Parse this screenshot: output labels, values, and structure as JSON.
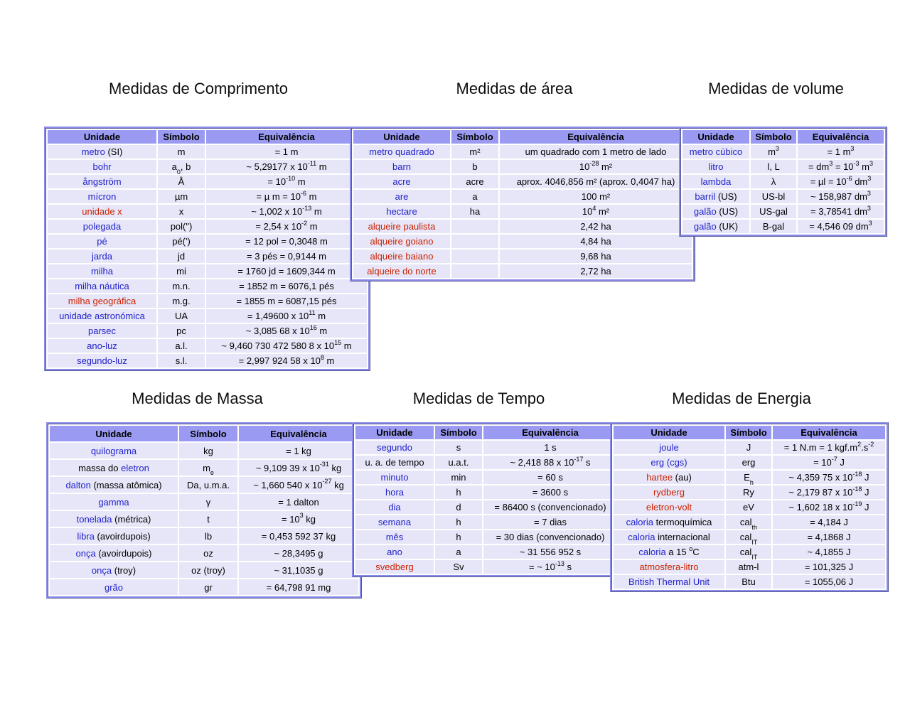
{
  "page": {
    "background": "#ffffff"
  },
  "colors": {
    "blue": "#2222cc",
    "red": "#cc2200",
    "black": "#000000",
    "header_bg": "#9a9af2",
    "row_bg": "#e6e6f8",
    "border": "#8a8ae8"
  },
  "tables": [
    {
      "id": "comprimento",
      "title": "Medidas de Comprimento",
      "headers": [
        "Unidade",
        "Símbolo",
        "Equivalência"
      ],
      "rows": [
        {
          "unit": [
            [
              "metro",
              "blue"
            ],
            [
              " (SI)",
              "black"
            ]
          ],
          "symbol": "m",
          "equiv": "= 1 m"
        },
        {
          "unit": [
            [
              "bohr",
              "blue"
            ]
          ],
          "symbol": "a_{0}, b",
          "equiv": "~ 5,29177 x 10^{-11} m"
        },
        {
          "unit": [
            [
              "ångström",
              "blue"
            ]
          ],
          "symbol": "Å",
          "equiv": "= 10^{-10} m"
        },
        {
          "unit": [
            [
              "mícron",
              "blue"
            ]
          ],
          "symbol": "µm",
          "equiv": "= µ m = 10^{-6} m"
        },
        {
          "unit": [
            [
              "unidade x",
              "red"
            ]
          ],
          "symbol": "x",
          "equiv": "~ 1,002 x 10^{-13} m"
        },
        {
          "unit": [
            [
              "polegada",
              "blue"
            ]
          ],
          "symbol": "pol(\")",
          "equiv": "= 2,54 x 10^{-2} m"
        },
        {
          "unit": [
            [
              "pé",
              "blue"
            ]
          ],
          "symbol": "pé(')",
          "equiv": "= 12 pol = 0,3048 m"
        },
        {
          "unit": [
            [
              "jarda",
              "blue"
            ]
          ],
          "symbol": "jd",
          "equiv": "= 3 pés = 0,9144 m"
        },
        {
          "unit": [
            [
              "milha",
              "blue"
            ]
          ],
          "symbol": "mi",
          "equiv": "= 1760 jd = 1609,344 m"
        },
        {
          "unit": [
            [
              "milha náutica",
              "blue"
            ]
          ],
          "symbol": "m.n.",
          "equiv": "= 1852 m = 6076,1 pés"
        },
        {
          "unit": [
            [
              "milha geográfica",
              "red"
            ]
          ],
          "symbol": "m.g.",
          "equiv": "= 1855 m = 6087,15 pés"
        },
        {
          "unit": [
            [
              "unidade astronómica",
              "blue"
            ]
          ],
          "symbol": "UA",
          "equiv": "= 1,49600 x 10^{11} m"
        },
        {
          "unit": [
            [
              "parsec",
              "blue"
            ]
          ],
          "symbol": "pc",
          "equiv": "~ 3,085 68 x 10^{16} m"
        },
        {
          "unit": [
            [
              "ano-luz",
              "blue"
            ]
          ],
          "symbol": "a.l.",
          "equiv": "~ 9,460 730 472 580 8 x 10^{15} m"
        },
        {
          "unit": [
            [
              "segundo-luz",
              "blue"
            ]
          ],
          "symbol": "s.l.",
          "equiv": "= 2,997 924 58 x 10^{8} m"
        }
      ]
    },
    {
      "id": "area",
      "title": "Medidas de área",
      "headers": [
        "Unidade",
        "Símbolo",
        "Equivalência"
      ],
      "rows": [
        {
          "unit": [
            [
              "metro quadrado",
              "blue"
            ]
          ],
          "symbol": "m²",
          "equiv": "um quadrado com 1 metro de lado"
        },
        {
          "unit": [
            [
              "barn",
              "blue"
            ]
          ],
          "symbol": "b",
          "equiv": "10^{-28} m²"
        },
        {
          "unit": [
            [
              "acre",
              "blue"
            ]
          ],
          "symbol": "acre",
          "equiv": "aprox. 4046,856 m² (aprox. 0,4047 ha)"
        },
        {
          "unit": [
            [
              "are",
              "blue"
            ]
          ],
          "symbol": "a",
          "equiv": "100 m²"
        },
        {
          "unit": [
            [
              "hectare",
              "blue"
            ]
          ],
          "symbol": "ha",
          "equiv": "10^{4} m²"
        },
        {
          "unit": [
            [
              "alqueire paulista",
              "red"
            ]
          ],
          "symbol": "",
          "equiv": "2,42 ha"
        },
        {
          "unit": [
            [
              "alqueire goiano",
              "red"
            ]
          ],
          "symbol": "",
          "equiv": "4,84 ha"
        },
        {
          "unit": [
            [
              "alqueire baiano",
              "red"
            ]
          ],
          "symbol": "",
          "equiv": "9,68 ha"
        },
        {
          "unit": [
            [
              "alqueire do norte",
              "red"
            ]
          ],
          "symbol": "",
          "equiv": "2,72 ha"
        }
      ]
    },
    {
      "id": "volume",
      "title": "Medidas de volume",
      "headers": [
        "Unidade",
        "Símbolo",
        "Equivalência"
      ],
      "rows": [
        {
          "unit": [
            [
              "metro cúbico",
              "blue"
            ]
          ],
          "symbol": "m^{3}",
          "equiv": "= 1 m^{3}"
        },
        {
          "unit": [
            [
              "litro",
              "blue"
            ]
          ],
          "symbol": "l, L",
          "equiv": "= dm^{3} = 10^{-3} m^{3}"
        },
        {
          "unit": [
            [
              "lambda",
              "blue"
            ]
          ],
          "symbol": "λ",
          "equiv": "= µl = 10^{-6} dm^{3}"
        },
        {
          "unit": [
            [
              "barril",
              "blue"
            ],
            [
              " (US)",
              "black"
            ]
          ],
          "symbol": "US-bl",
          "equiv": "~ 158,987 dm^{3}"
        },
        {
          "unit": [
            [
              "galão",
              "blue"
            ],
            [
              " (US)",
              "black"
            ]
          ],
          "symbol": "US-gal",
          "equiv": "= 3,78541 dm^{3}"
        },
        {
          "unit": [
            [
              "galão",
              "blue"
            ],
            [
              " (UK)",
              "black"
            ]
          ],
          "symbol": "B-gal",
          "equiv": "= 4,546 09 dm^{3}"
        }
      ]
    },
    {
      "id": "massa",
      "title": "Medidas de Massa",
      "headers": [
        "Unidade",
        "Símbolo",
        "Equivalência"
      ],
      "rows": [
        {
          "unit": [
            [
              "quilograma",
              "blue"
            ]
          ],
          "symbol": "kg",
          "equiv": "= 1 kg"
        },
        {
          "unit": [
            [
              "massa do ",
              "black"
            ],
            [
              "eletron",
              "blue"
            ]
          ],
          "symbol": "m_{e}",
          "equiv": "~ 9,109 39 x 10^{-31} kg"
        },
        {
          "unit": [
            [
              "dalton",
              "blue"
            ],
            [
              " (massa atômica)",
              "black"
            ]
          ],
          "symbol": "Da, u.m.a.",
          "equiv": "~ 1,660 540 x 10^{-27} kg"
        },
        {
          "unit": [
            [
              "gamma",
              "blue"
            ]
          ],
          "symbol": "γ",
          "equiv": "= 1 dalton"
        },
        {
          "unit": [
            [
              "tonelada",
              "blue"
            ],
            [
              " (métrica)",
              "black"
            ]
          ],
          "symbol": "t",
          "equiv": "= 10^{3} kg"
        },
        {
          "unit": [
            [
              "libra",
              "blue"
            ],
            [
              " (avoirdupois)",
              "black"
            ]
          ],
          "symbol": "lb",
          "equiv": "= 0,453 592 37 kg"
        },
        {
          "unit": [
            [
              "onça",
              "blue"
            ],
            [
              " (avoirdupois)",
              "black"
            ]
          ],
          "symbol": "oz",
          "equiv": "~ 28,3495 g"
        },
        {
          "unit": [
            [
              "onça",
              "blue"
            ],
            [
              " (troy)",
              "black"
            ]
          ],
          "symbol": "oz (troy)",
          "equiv": "~ 31,1035 g"
        },
        {
          "unit": [
            [
              "grão",
              "blue"
            ]
          ],
          "symbol": "gr",
          "equiv": "= 64,798 91 mg"
        }
      ]
    },
    {
      "id": "tempo",
      "title": "Medidas de Tempo",
      "headers": [
        "Unidade",
        "Símbolo",
        "Equivalência"
      ],
      "rows": [
        {
          "unit": [
            [
              "segundo",
              "blue"
            ]
          ],
          "symbol": "s",
          "equiv": "1 s"
        },
        {
          "unit": [
            [
              "u. a. de tempo",
              "black"
            ]
          ],
          "symbol": "u.a.t.",
          "equiv": "~ 2,418 88 x 10^{-17} s"
        },
        {
          "unit": [
            [
              "minuto",
              "blue"
            ]
          ],
          "symbol": "min",
          "equiv": "= 60 s"
        },
        {
          "unit": [
            [
              "hora",
              "blue"
            ]
          ],
          "symbol": "h",
          "equiv": "= 3600 s"
        },
        {
          "unit": [
            [
              "dia",
              "blue"
            ]
          ],
          "symbol": "d",
          "equiv": "= 86400 s (convencionado)"
        },
        {
          "unit": [
            [
              "semana",
              "blue"
            ]
          ],
          "symbol": "h",
          "equiv": "= 7 dias"
        },
        {
          "unit": [
            [
              "mês",
              "blue"
            ]
          ],
          "symbol": "h",
          "equiv": "= 30 dias (convencionado)"
        },
        {
          "unit": [
            [
              "ano",
              "blue"
            ]
          ],
          "symbol": "a",
          "equiv": "~ 31 556 952 s"
        },
        {
          "unit": [
            [
              "svedberg",
              "red"
            ]
          ],
          "symbol": "Sv",
          "equiv": "= ~ 10^{-13} s"
        }
      ]
    },
    {
      "id": "energia",
      "title": "Medidas de Energia",
      "headers": [
        "Unidade",
        "Símbolo",
        "Equivalência"
      ],
      "rows": [
        {
          "unit": [
            [
              "joule",
              "blue"
            ]
          ],
          "symbol": "J",
          "equiv": "= 1 N.m = 1 kgf.m^{2}.s^{-2}"
        },
        {
          "unit": [
            [
              "erg (cgs)",
              "blue"
            ]
          ],
          "symbol": "erg",
          "equiv": "= 10^{-7} J"
        },
        {
          "unit": [
            [
              "hartee",
              "red"
            ],
            [
              " (au)",
              "black"
            ]
          ],
          "symbol": "E_{h}",
          "equiv": "~ 4,359 75 x 10^{-18} J"
        },
        {
          "unit": [
            [
              "rydberg",
              "red"
            ]
          ],
          "symbol": "Ry",
          "equiv": "~ 2,179 87 x 10^{-18} J"
        },
        {
          "unit": [
            [
              "eletron-volt",
              "red"
            ]
          ],
          "symbol": "eV",
          "equiv": "~ 1,602 18 x 10^{-19} J"
        },
        {
          "unit": [
            [
              "caloria",
              "blue"
            ],
            [
              " termoquímica",
              "black"
            ]
          ],
          "symbol": "cal_{th}",
          "equiv": "= 4,184 J"
        },
        {
          "unit": [
            [
              "caloria",
              "blue"
            ],
            [
              " internacional",
              "black"
            ]
          ],
          "symbol": "cal_{IT}",
          "equiv": "= 4,1868 J"
        },
        {
          "unit": [
            [
              "caloria",
              "blue"
            ],
            [
              " a 15 ^{o}C",
              "black"
            ]
          ],
          "symbol": "cal_{IT}",
          "equiv": "~ 4,1855 J"
        },
        {
          "unit": [
            [
              "atmosfera-litro",
              "red"
            ]
          ],
          "symbol": "atm-l",
          "equiv": "= 101,325 J"
        },
        {
          "unit": [
            [
              "British Thermal Unit",
              "blue"
            ]
          ],
          "symbol": "Btu",
          "equiv": "= 1055,06 J"
        }
      ]
    }
  ]
}
